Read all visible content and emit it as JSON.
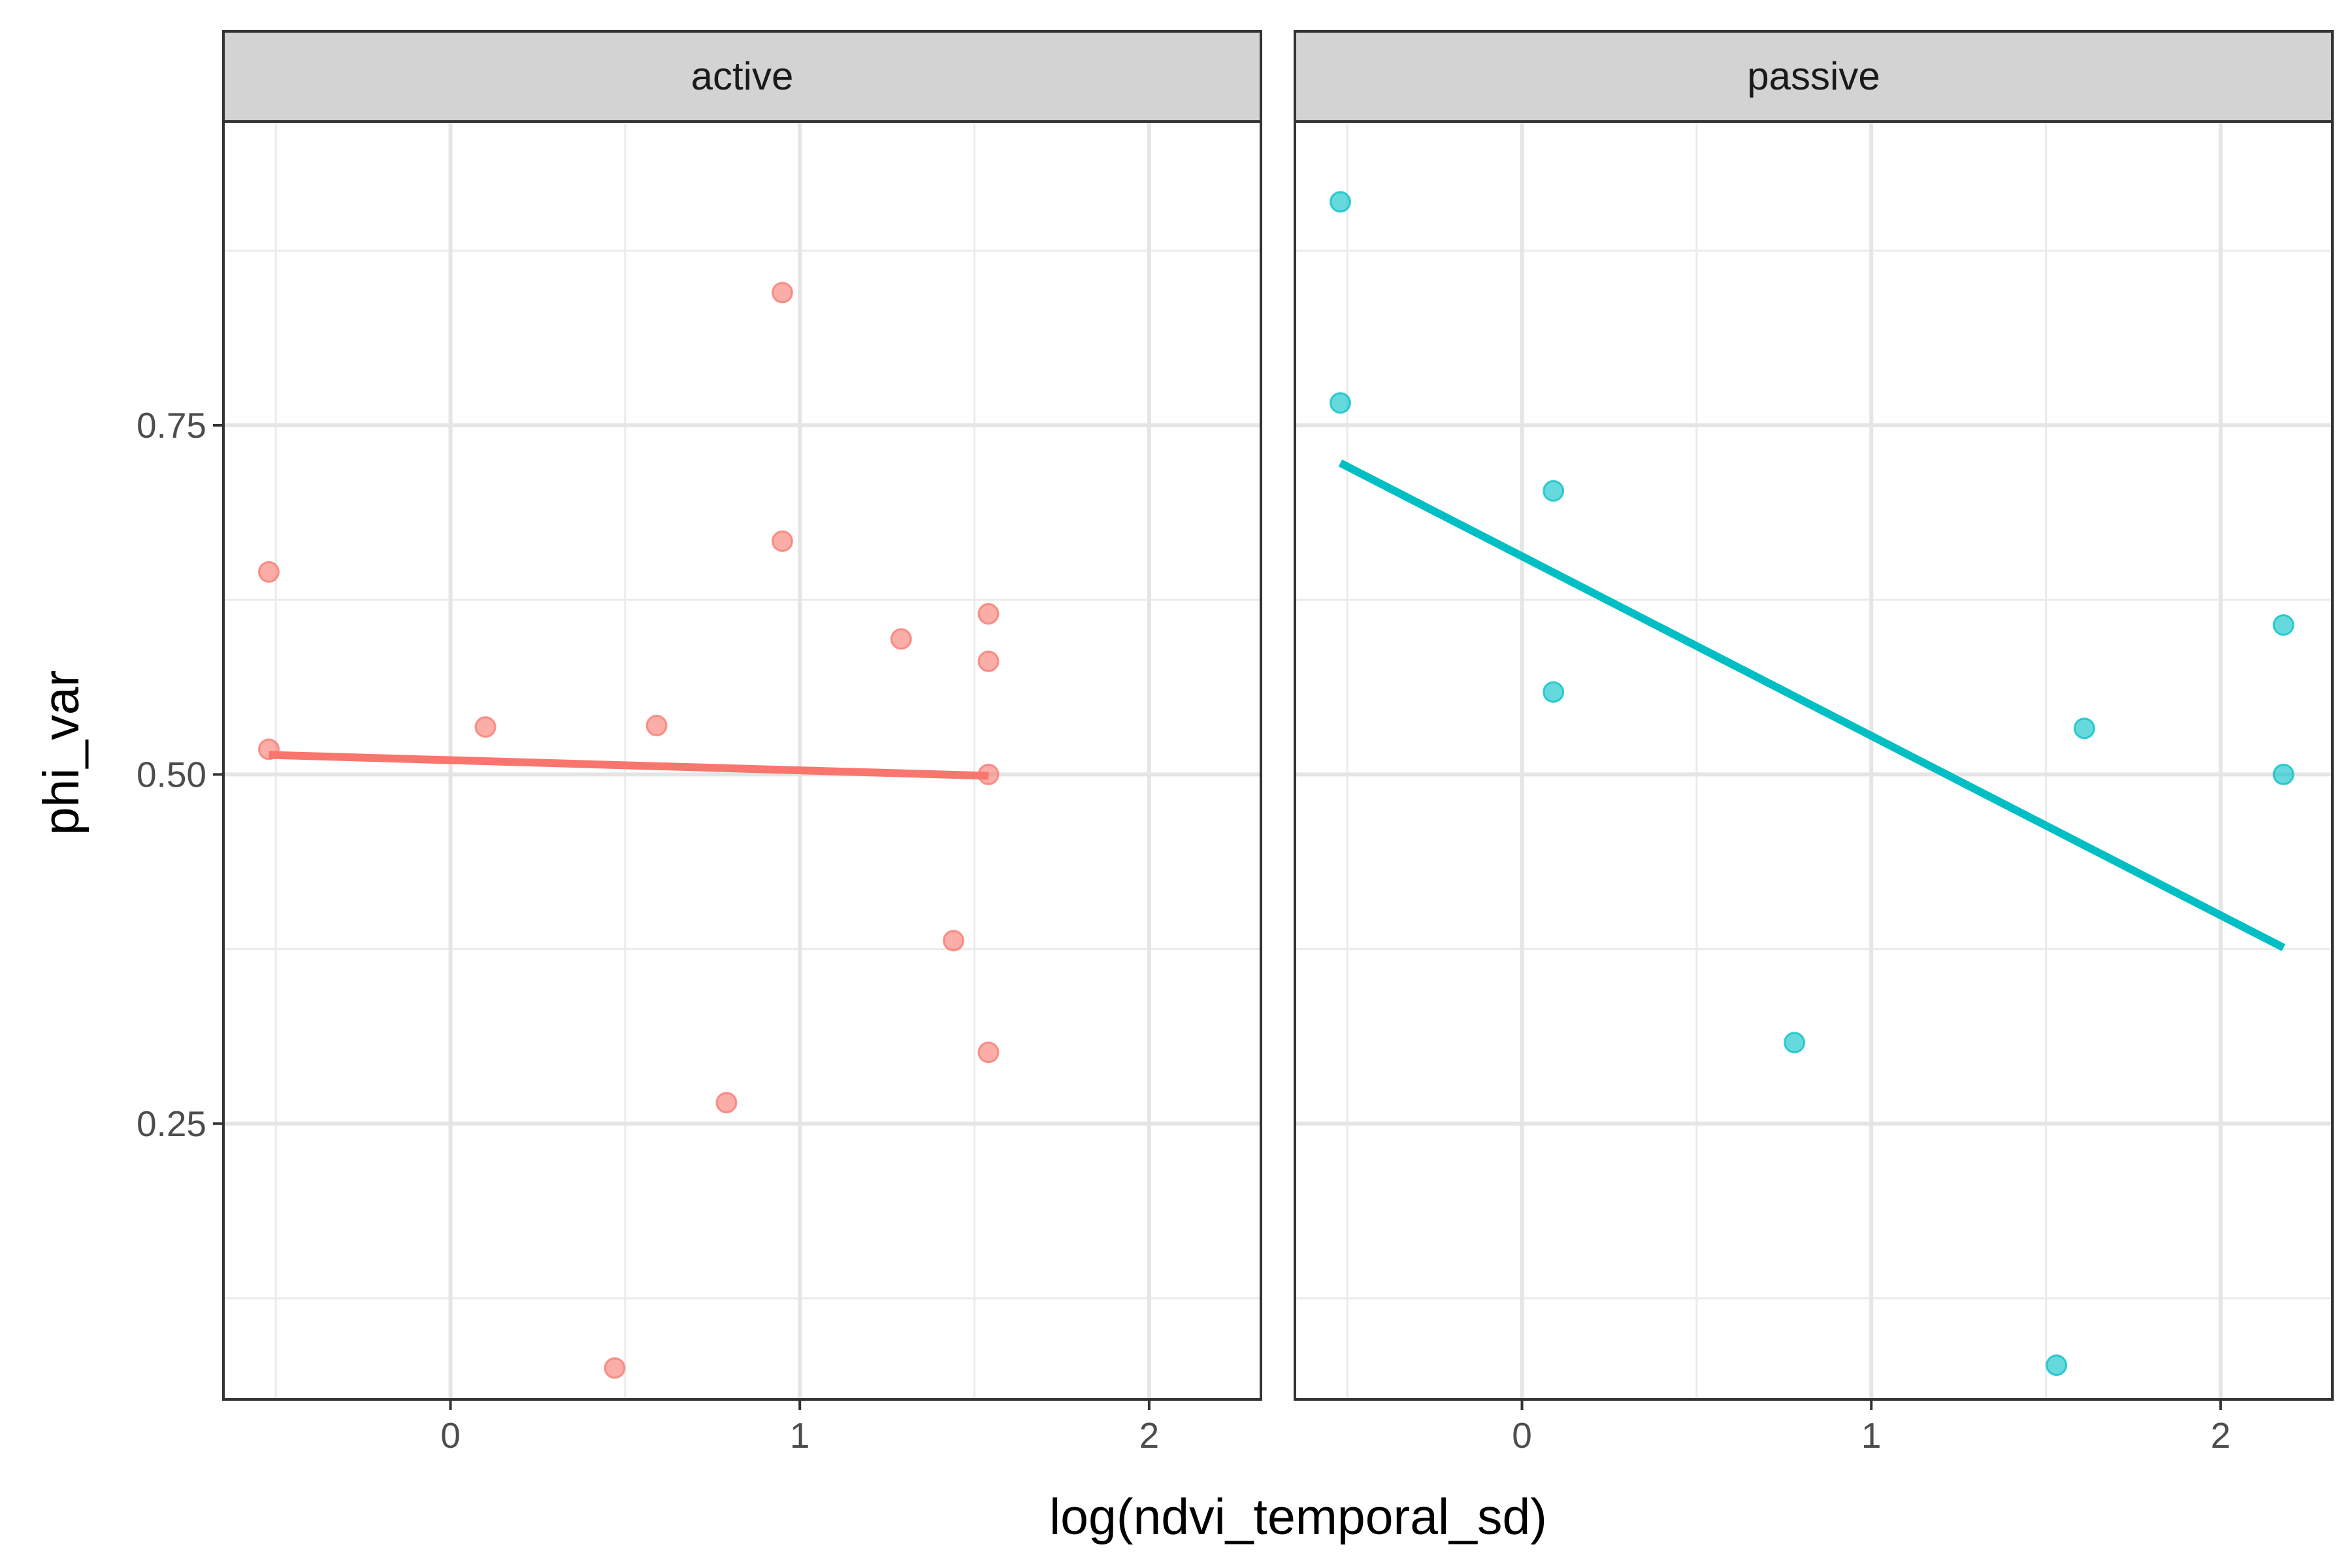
{
  "chart_data": {
    "type": "scatter",
    "xlabel": "log(ndvi_temporal_sd)",
    "ylabel": "phi_var",
    "xlim": [
      -0.65,
      2.32
    ],
    "ylim": [
      0.0525,
      0.9675
    ],
    "x_ticks": [
      0,
      1,
      2
    ],
    "y_ticks": [
      0.25,
      0.5,
      0.75
    ],
    "x_tick_labels": [
      "0",
      "1",
      "2"
    ],
    "y_tick_labels": [
      "0.25",
      "0.50",
      "0.75"
    ],
    "grid": true,
    "legend": "none",
    "panels": [
      {
        "name": "active",
        "color": "#f8766d",
        "points": [
          {
            "x": -0.52,
            "y": 0.645
          },
          {
            "x": -0.52,
            "y": 0.518
          },
          {
            "x": 0.1,
            "y": 0.534
          },
          {
            "x": 0.59,
            "y": 0.535
          },
          {
            "x": 0.95,
            "y": 0.845
          },
          {
            "x": 0.95,
            "y": 0.667
          },
          {
            "x": 1.29,
            "y": 0.597
          },
          {
            "x": 1.54,
            "y": 0.615
          },
          {
            "x": 1.54,
            "y": 0.581
          },
          {
            "x": 1.54,
            "y": 0.5
          },
          {
            "x": 1.44,
            "y": 0.381
          },
          {
            "x": 1.54,
            "y": 0.301
          },
          {
            "x": 0.79,
            "y": 0.265
          },
          {
            "x": 0.47,
            "y": 0.075
          }
        ],
        "fit": {
          "x": [
            -0.52,
            1.54
          ],
          "y": [
            0.514,
            0.499
          ]
        }
      },
      {
        "name": "passive",
        "color": "#00bfc4",
        "points": [
          {
            "x": -0.52,
            "y": 0.91
          },
          {
            "x": -0.52,
            "y": 0.766
          },
          {
            "x": 0.09,
            "y": 0.703
          },
          {
            "x": 0.09,
            "y": 0.559
          },
          {
            "x": 0.78,
            "y": 0.308
          },
          {
            "x": 1.61,
            "y": 0.533
          },
          {
            "x": 2.18,
            "y": 0.607
          },
          {
            "x": 2.18,
            "y": 0.5
          },
          {
            "x": 1.53,
            "y": 0.077
          }
        ],
        "fit": {
          "x": [
            -0.52,
            2.18
          ],
          "y": [
            0.723,
            0.376
          ]
        }
      }
    ]
  }
}
